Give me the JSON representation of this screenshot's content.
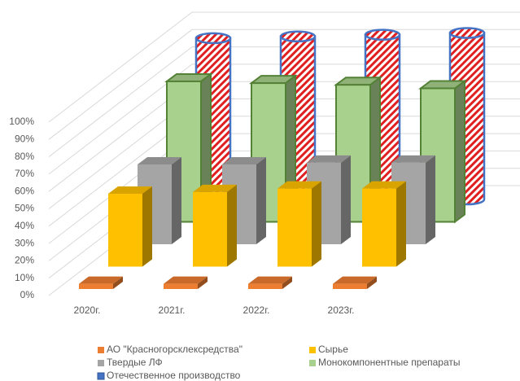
{
  "chart_data": {
    "type": "bar3d",
    "categories": [
      "2020г.",
      "2021г.",
      "2022г.",
      "2023г."
    ],
    "series": [
      {
        "name": "АО \"Красногорсклексредства\"",
        "color": "#ed7d31",
        "values": [
          3,
          3,
          3,
          3
        ]
      },
      {
        "name": "Сырье",
        "color": "#ffc000",
        "values": [
          42,
          43,
          45,
          45
        ]
      },
      {
        "name": "Твердые ЛФ",
        "color": "#a5a5a5",
        "values": [
          46,
          46,
          47,
          47
        ]
      },
      {
        "name": "Монокомпонентные препараты",
        "color": "#a9d18e",
        "values": [
          81,
          80,
          79,
          77
        ]
      },
      {
        "name": "Отечественное производство",
        "color": "#4472c4",
        "values": [
          93,
          94,
          95,
          96
        ]
      }
    ],
    "ylim": [
      0,
      100
    ],
    "yticks": [
      {
        "value": 0,
        "label": "0%"
      },
      {
        "value": 10,
        "label": "10%"
      },
      {
        "value": 20,
        "label": "20%"
      },
      {
        "value": 30,
        "label": "30%"
      },
      {
        "value": 40,
        "label": "40%"
      },
      {
        "value": 50,
        "label": "50%"
      },
      {
        "value": 60,
        "label": "60%"
      },
      {
        "value": 70,
        "label": "70%"
      },
      {
        "value": 80,
        "label": "80%"
      },
      {
        "value": 90,
        "label": "90%"
      },
      {
        "value": 100,
        "label": "100%"
      }
    ],
    "grid": true,
    "legend": "bottom"
  }
}
